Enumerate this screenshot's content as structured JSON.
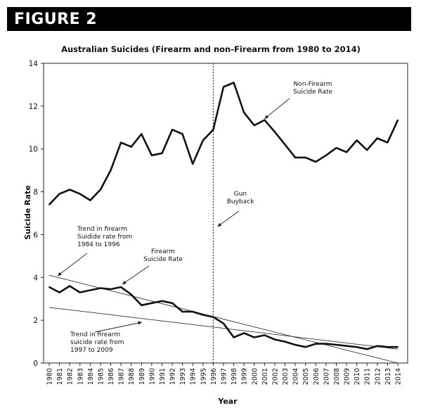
{
  "figure_label": "FIGURE 2",
  "chart_data": {
    "type": "line",
    "title": "Australian Suicides (Firearm and non-Firearm from 1980 to 2014)",
    "xlabel": "Year",
    "ylabel": "Suicide Rate",
    "ylim": [
      0,
      14
    ],
    "yticks": [
      0,
      2,
      4,
      6,
      8,
      10,
      12,
      14
    ],
    "x": [
      1980,
      1981,
      1982,
      1983,
      1984,
      1985,
      1986,
      1987,
      1988,
      1989,
      1990,
      1991,
      1992,
      1993,
      1994,
      1995,
      1996,
      1997,
      1998,
      1999,
      2000,
      2001,
      2002,
      2003,
      2004,
      2005,
      2006,
      2007,
      2008,
      2009,
      2010,
      2011,
      2012,
      2013,
      2014
    ],
    "x_tick_labels": [
      "1980",
      "1981",
      "1982",
      "1983",
      "1984",
      "1985",
      "1986",
      "1987",
      "1988",
      "1989",
      "1990",
      "1991",
      "1992",
      "1993",
      "1994",
      "1995",
      "1996",
      "1997",
      "1998",
      "1999",
      "2000",
      "2001",
      "2002",
      "2003",
      "2004",
      "2005",
      "2006",
      "2007",
      "2008",
      "2009",
      "2010",
      "2011",
      "2012",
      "2013",
      "2014"
    ],
    "series": [
      {
        "name": "Non-Firearm Suicide Rate",
        "values": [
          7.4,
          7.9,
          8.1,
          7.9,
          7.6,
          8.1,
          9.0,
          10.3,
          10.1,
          10.7,
          9.7,
          9.8,
          10.9,
          10.7,
          9.3,
          10.4,
          10.9,
          12.9,
          13.1,
          11.7,
          11.1,
          11.35,
          10.8,
          10.2,
          9.6,
          9.6,
          9.4,
          9.7,
          10.05,
          9.85,
          10.4,
          9.95,
          10.5,
          10.3,
          11.35
        ]
      },
      {
        "name": "Firearm Suicide Rate",
        "values": [
          3.55,
          3.3,
          3.6,
          3.3,
          3.4,
          3.5,
          3.45,
          3.55,
          3.2,
          2.7,
          2.8,
          2.9,
          2.8,
          2.4,
          2.4,
          2.25,
          2.15,
          1.85,
          1.2,
          1.4,
          1.2,
          1.3,
          1.1,
          1.0,
          0.85,
          0.75,
          0.9,
          0.9,
          0.85,
          0.8,
          0.75,
          0.65,
          0.8,
          0.75,
          0.75
        ]
      }
    ],
    "trendlines": [
      {
        "name": "Trend in firearm suicide rate from 1984 to 1996",
        "from": [
          1980,
          4.1
        ],
        "to": [
          2014,
          0.0
        ]
      },
      {
        "name": "Trend in firearm suicide rate from 1997 to 2009",
        "from": [
          1980,
          2.6
        ],
        "to": [
          2014,
          0.65
        ]
      }
    ],
    "vline": {
      "x": 1996,
      "label": "Gun Buyback"
    },
    "annotations": {
      "non_firearm": [
        "Non-Firearm",
        "Suicide Rate"
      ],
      "firearm": [
        "Firearm",
        "Suicide Rate"
      ],
      "gun_buyback": [
        "Gun",
        "Buyback"
      ],
      "trend1": [
        "Trend in firearm",
        "Suidide rate from",
        "1984 to 1996"
      ],
      "trend2": [
        "Trend in firearm",
        "suicide rate from",
        "1997 to 2009"
      ]
    },
    "grid": false,
    "legend": "none"
  }
}
